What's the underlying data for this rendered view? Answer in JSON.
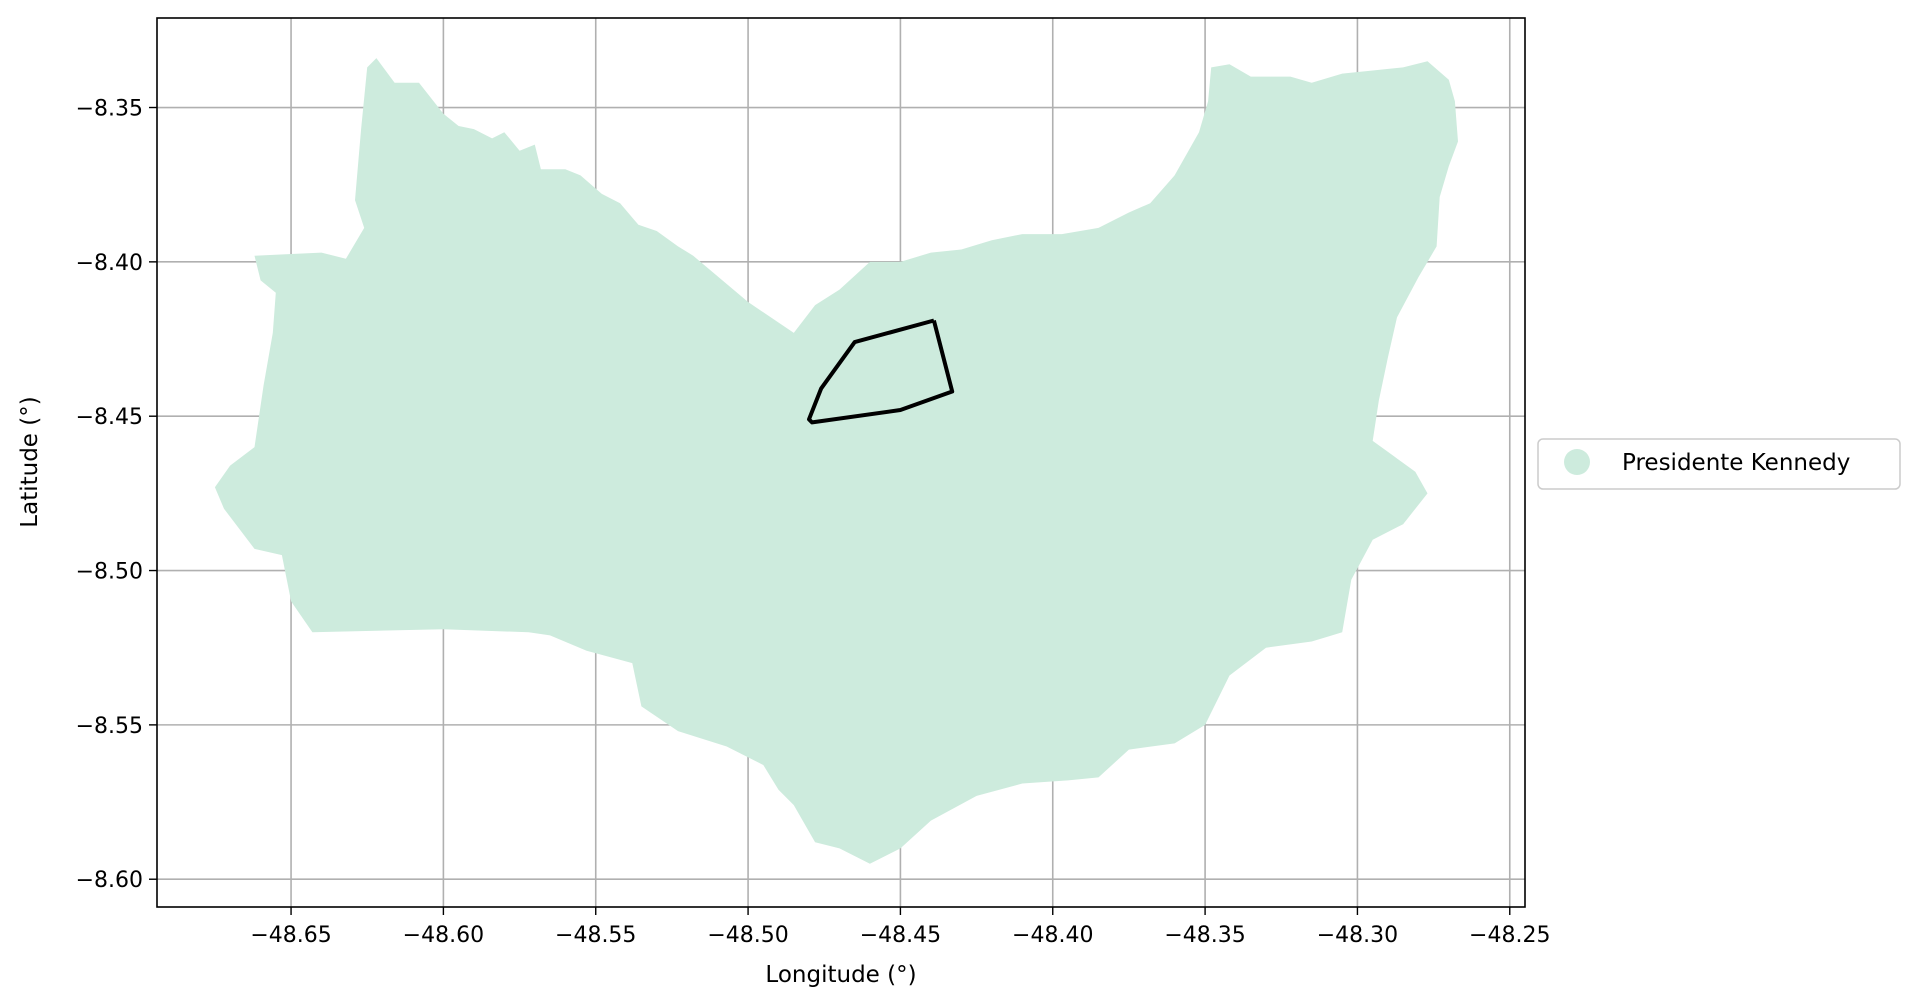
{
  "chart_data": {
    "type": "map",
    "title": "",
    "xlabel": "Longitude (°)",
    "ylabel": "Latitude (°)",
    "xlim": [
      -48.694,
      -48.245
    ],
    "ylim": [
      -8.609,
      -8.321
    ],
    "x_ticks": [
      -48.65,
      -48.6,
      -48.55,
      -48.5,
      -48.45,
      -48.4,
      -48.35,
      -48.3,
      -48.25
    ],
    "x_tick_labels": [
      "−48.65",
      "−48.60",
      "−48.55",
      "−48.50",
      "−48.45",
      "−48.40",
      "−48.35",
      "−48.30",
      "−48.25"
    ],
    "y_ticks": [
      -8.35,
      -8.4,
      -8.45,
      -8.5,
      -8.55,
      -8.6
    ],
    "y_tick_labels": [
      "−8.35",
      "−8.40",
      "−8.45",
      "−8.50",
      "−8.55",
      "−8.60"
    ],
    "grid": true,
    "legend_position": "outside-right",
    "legend": [
      {
        "label": "Presidente Kennedy",
        "color": "#cdebdd",
        "marker": "circle"
      }
    ],
    "region": {
      "name": "Presidente Kennedy",
      "fill": "#cdebdd",
      "boundary": [
        [
          -48.662,
          -8.398
        ],
        [
          -48.64,
          -8.397
        ],
        [
          -48.632,
          -8.399
        ],
        [
          -48.626,
          -8.389
        ],
        [
          -48.629,
          -8.38
        ],
        [
          -48.627,
          -8.357
        ],
        [
          -48.625,
          -8.337
        ],
        [
          -48.622,
          -8.334
        ],
        [
          -48.616,
          -8.342
        ],
        [
          -48.608,
          -8.342
        ],
        [
          -48.6,
          -8.352
        ],
        [
          -48.595,
          -8.356
        ],
        [
          -48.59,
          -8.357
        ],
        [
          -48.584,
          -8.36
        ],
        [
          -48.58,
          -8.358
        ],
        [
          -48.575,
          -8.364
        ],
        [
          -48.57,
          -8.362
        ],
        [
          -48.568,
          -8.37
        ],
        [
          -48.56,
          -8.37
        ],
        [
          -48.555,
          -8.372
        ],
        [
          -48.548,
          -8.378
        ],
        [
          -48.542,
          -8.381
        ],
        [
          -48.536,
          -8.388
        ],
        [
          -48.53,
          -8.39
        ],
        [
          -48.523,
          -8.395
        ],
        [
          -48.518,
          -8.398
        ],
        [
          -48.5,
          -8.413
        ],
        [
          -48.485,
          -8.423
        ],
        [
          -48.478,
          -8.414
        ],
        [
          -48.47,
          -8.409
        ],
        [
          -48.46,
          -8.4
        ],
        [
          -48.45,
          -8.4
        ],
        [
          -48.44,
          -8.397
        ],
        [
          -48.43,
          -8.396
        ],
        [
          -48.42,
          -8.393
        ],
        [
          -48.41,
          -8.391
        ],
        [
          -48.397,
          -8.391
        ],
        [
          -48.385,
          -8.389
        ],
        [
          -48.375,
          -8.384
        ],
        [
          -48.368,
          -8.381
        ],
        [
          -48.36,
          -8.372
        ],
        [
          -48.352,
          -8.358
        ],
        [
          -48.349,
          -8.348
        ],
        [
          -48.348,
          -8.337
        ],
        [
          -48.342,
          -8.336
        ],
        [
          -48.335,
          -8.34
        ],
        [
          -48.322,
          -8.34
        ],
        [
          -48.315,
          -8.342
        ],
        [
          -48.305,
          -8.339
        ],
        [
          -48.295,
          -8.338
        ],
        [
          -48.285,
          -8.337
        ],
        [
          -48.277,
          -8.335
        ],
        [
          -48.27,
          -8.341
        ],
        [
          -48.268,
          -8.348
        ],
        [
          -48.267,
          -8.361
        ],
        [
          -48.27,
          -8.369
        ],
        [
          -48.273,
          -8.379
        ],
        [
          -48.274,
          -8.395
        ],
        [
          -48.28,
          -8.405
        ],
        [
          -48.287,
          -8.418
        ],
        [
          -48.29,
          -8.431
        ],
        [
          -48.293,
          -8.445
        ],
        [
          -48.295,
          -8.458
        ],
        [
          -48.288,
          -8.463
        ],
        [
          -48.281,
          -8.468
        ],
        [
          -48.277,
          -8.475
        ],
        [
          -48.285,
          -8.485
        ],
        [
          -48.295,
          -8.49
        ],
        [
          -48.302,
          -8.503
        ],
        [
          -48.305,
          -8.52
        ],
        [
          -48.315,
          -8.523
        ],
        [
          -48.33,
          -8.525
        ],
        [
          -48.342,
          -8.534
        ],
        [
          -48.35,
          -8.55
        ],
        [
          -48.36,
          -8.556
        ],
        [
          -48.375,
          -8.558
        ],
        [
          -48.385,
          -8.567
        ],
        [
          -48.395,
          -8.568
        ],
        [
          -48.41,
          -8.569
        ],
        [
          -48.425,
          -8.573
        ],
        [
          -48.44,
          -8.581
        ],
        [
          -48.45,
          -8.59
        ],
        [
          -48.46,
          -8.595
        ],
        [
          -48.47,
          -8.59
        ],
        [
          -48.478,
          -8.588
        ],
        [
          -48.485,
          -8.576
        ],
        [
          -48.49,
          -8.571
        ],
        [
          -48.495,
          -8.563
        ],
        [
          -48.507,
          -8.557
        ],
        [
          -48.523,
          -8.552
        ],
        [
          -48.535,
          -8.544
        ],
        [
          -48.538,
          -8.53
        ],
        [
          -48.553,
          -8.526
        ],
        [
          -48.565,
          -8.521
        ],
        [
          -48.572,
          -8.52
        ],
        [
          -48.6,
          -8.519
        ],
        [
          -48.643,
          -8.52
        ],
        [
          -48.65,
          -8.51
        ],
        [
          -48.653,
          -8.495
        ],
        [
          -48.662,
          -8.493
        ],
        [
          -48.672,
          -8.48
        ],
        [
          -48.675,
          -8.473
        ],
        [
          -48.67,
          -8.466
        ],
        [
          -48.662,
          -8.46
        ],
        [
          -48.659,
          -8.44
        ],
        [
          -48.656,
          -8.423
        ],
        [
          -48.655,
          -8.41
        ],
        [
          -48.66,
          -8.406
        ]
      ]
    },
    "outline": {
      "stroke": "#000000",
      "points": [
        [
          -48.439,
          -8.419
        ],
        [
          -48.433,
          -8.442
        ],
        [
          -48.45,
          -8.448
        ],
        [
          -48.479,
          -8.452
        ],
        [
          -48.48,
          -8.451
        ],
        [
          -48.476,
          -8.441
        ],
        [
          -48.465,
          -8.426
        ],
        [
          -48.439,
          -8.419
        ]
      ]
    }
  }
}
